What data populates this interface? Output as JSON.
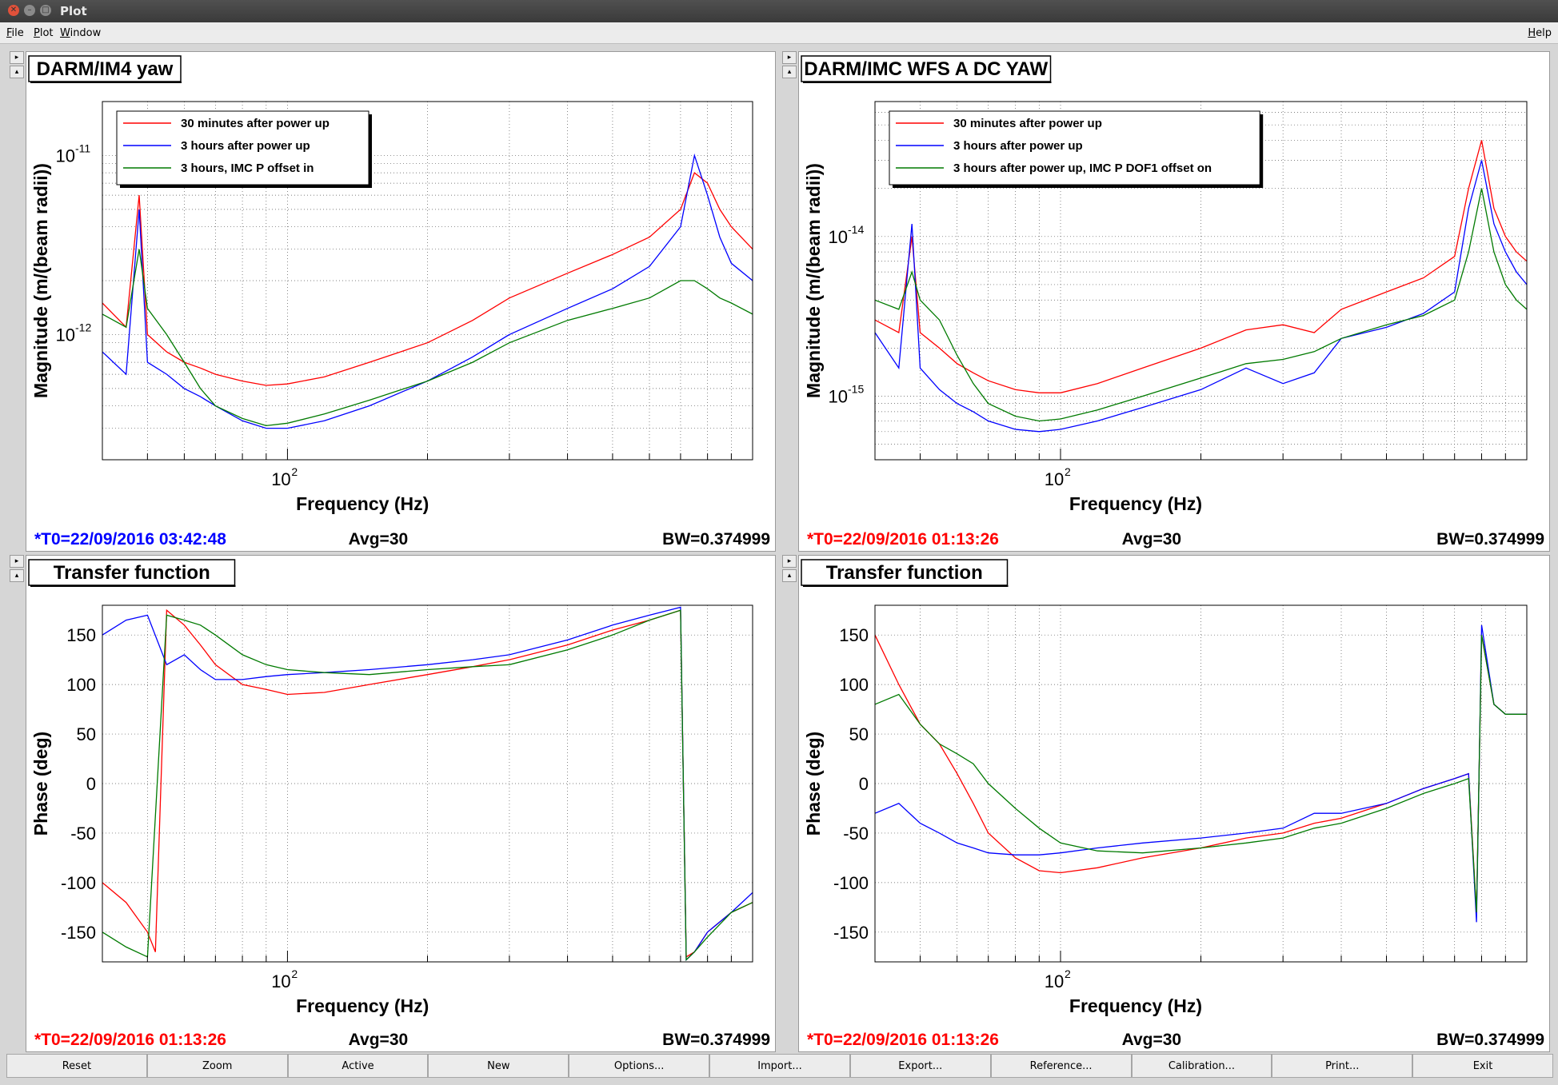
{
  "window": {
    "title": "Plot"
  },
  "menu": {
    "file": "File",
    "plot": "Plot",
    "window": "Window",
    "help": "Help"
  },
  "toolbar": [
    "Reset",
    "Zoom",
    "Active",
    "New",
    "Options...",
    "Import...",
    "Export...",
    "Reference...",
    "Calibration...",
    "Print...",
    "Exit"
  ],
  "colors": {
    "red": "#ff0000",
    "blue": "#0000ff",
    "green": "#007a00",
    "bg": "#d6d6d6"
  },
  "chart_data": [
    {
      "type": "line",
      "title": "DARM/IM4 yaw",
      "xlabel": "Frequency (Hz)",
      "ylabel": "Magnitude (m/(beam radii))",
      "xscale": "log",
      "yscale": "log",
      "xlim": [
        40,
        1000
      ],
      "ylim": [
        2e-13,
        2e-11
      ],
      "xtick_labels": [
        {
          "value": 100,
          "label": "10",
          "exp": "2"
        }
      ],
      "ytick_labels": [
        {
          "value": 1e-11,
          "label": "10",
          "exp": "-11"
        },
        {
          "value": 1e-12,
          "label": "10",
          "exp": "-12"
        }
      ],
      "legend": [
        "30 minutes after power up",
        "3 hours after power up",
        "3 hours, IMC P offset in"
      ],
      "legend_position": "top-left",
      "footer": {
        "t0": "*T0=22/09/2016 03:42:48",
        "t0_color": "#0000ff",
        "avg": "Avg=30",
        "bw": "BW=0.374999"
      },
      "series": [
        {
          "name": "30 minutes after power up",
          "color": "#ff0000",
          "x": [
            40,
            45,
            48,
            50,
            55,
            60,
            65,
            70,
            80,
            90,
            100,
            120,
            150,
            200,
            250,
            300,
            400,
            500,
            600,
            700,
            750,
            800,
            850,
            900,
            1000
          ],
          "y": [
            1.5e-12,
            1.1e-12,
            6e-12,
            1e-12,
            8e-13,
            7e-13,
            6.5e-13,
            6e-13,
            5.5e-13,
            5.2e-13,
            5.3e-13,
            5.8e-13,
            7e-13,
            9e-13,
            1.2e-12,
            1.6e-12,
            2.2e-12,
            2.8e-12,
            3.5e-12,
            5e-12,
            8e-12,
            7e-12,
            5e-12,
            4e-12,
            3e-12
          ]
        },
        {
          "name": "3 hours after power up",
          "color": "#0000ff",
          "x": [
            40,
            45,
            48,
            50,
            55,
            60,
            65,
            70,
            80,
            90,
            100,
            120,
            150,
            200,
            250,
            300,
            400,
            500,
            600,
            700,
            750,
            800,
            850,
            900,
            1000
          ],
          "y": [
            8e-13,
            6e-13,
            5e-12,
            7e-13,
            6e-13,
            5e-13,
            4.5e-13,
            4e-13,
            3.3e-13,
            3e-13,
            3e-13,
            3.3e-13,
            4e-13,
            5.5e-13,
            7.5e-13,
            1e-12,
            1.4e-12,
            1.8e-12,
            2.4e-12,
            4e-12,
            1e-11,
            6e-12,
            3.5e-12,
            2.5e-12,
            2e-12
          ]
        },
        {
          "name": "3 hours, IMC P offset in",
          "color": "#007a00",
          "x": [
            40,
            45,
            48,
            50,
            55,
            60,
            65,
            70,
            80,
            90,
            100,
            120,
            150,
            200,
            250,
            300,
            400,
            500,
            600,
            700,
            750,
            800,
            850,
            900,
            1000
          ],
          "y": [
            1.3e-12,
            1.1e-12,
            3e-12,
            1.4e-12,
            1e-12,
            7e-13,
            5e-13,
            4e-13,
            3.4e-13,
            3.1e-13,
            3.2e-13,
            3.6e-13,
            4.3e-13,
            5.5e-13,
            7e-13,
            9e-13,
            1.2e-12,
            1.4e-12,
            1.6e-12,
            2e-12,
            2e-12,
            1.8e-12,
            1.6e-12,
            1.5e-12,
            1.3e-12
          ]
        }
      ]
    },
    {
      "type": "line",
      "title": "DARM/IMC WFS A DC YAW",
      "xlabel": "Frequency (Hz)",
      "ylabel": "Magnitude (m/(beam radii))",
      "xscale": "log",
      "yscale": "log",
      "xlim": [
        40,
        1000
      ],
      "ylim": [
        4e-16,
        7e-14
      ],
      "xtick_labels": [
        {
          "value": 100,
          "label": "10",
          "exp": "2"
        }
      ],
      "ytick_labels": [
        {
          "value": 1e-14,
          "label": "10",
          "exp": "-14"
        },
        {
          "value": 1e-15,
          "label": "10",
          "exp": "-15"
        }
      ],
      "legend": [
        "30 minutes after power up",
        "3 hours after power up",
        "3 hours after power up, IMC P DOF1 offset on"
      ],
      "legend_position": "top-left",
      "footer": {
        "t0": "*T0=22/09/2016 01:13:26",
        "t0_color": "#ff0000",
        "avg": "Avg=30",
        "bw": "BW=0.374999"
      },
      "series": [
        {
          "name": "30 minutes after power up",
          "color": "#ff0000",
          "x": [
            40,
            45,
            48,
            50,
            55,
            60,
            65,
            70,
            80,
            90,
            100,
            120,
            150,
            200,
            250,
            300,
            350,
            400,
            500,
            600,
            700,
            750,
            800,
            850,
            900,
            950,
            1000
          ],
          "y": [
            3e-15,
            2.5e-15,
            1e-14,
            2.5e-15,
            2e-15,
            1.6e-15,
            1.4e-15,
            1.25e-15,
            1.1e-15,
            1.05e-15,
            1.05e-15,
            1.2e-15,
            1.5e-15,
            2e-15,
            2.6e-15,
            2.8e-15,
            2.5e-15,
            3.5e-15,
            4.5e-15,
            5.5e-15,
            7.5e-15,
            2e-14,
            4e-14,
            1.5e-14,
            1e-14,
            8e-15,
            7e-15
          ]
        },
        {
          "name": "3 hours after power up",
          "color": "#0000ff",
          "x": [
            40,
            45,
            48,
            50,
            55,
            60,
            65,
            70,
            80,
            90,
            100,
            120,
            150,
            200,
            250,
            300,
            350,
            400,
            500,
            600,
            700,
            750,
            800,
            850,
            900,
            950,
            1000
          ],
          "y": [
            2.5e-15,
            1.5e-15,
            1.2e-14,
            1.5e-15,
            1.1e-15,
            9e-16,
            8e-16,
            7e-16,
            6.2e-16,
            6e-16,
            6.2e-16,
            7e-16,
            8.5e-16,
            1.1e-15,
            1.5e-15,
            1.2e-15,
            1.4e-15,
            2.3e-15,
            2.7e-15,
            3.3e-15,
            4.5e-15,
            1.5e-14,
            3e-14,
            1.2e-14,
            8e-15,
            6e-15,
            5e-15
          ]
        },
        {
          "name": "3 hours after power up, IMC P DOF1 offset on",
          "color": "#007a00",
          "x": [
            40,
            45,
            48,
            50,
            55,
            60,
            65,
            70,
            80,
            90,
            100,
            120,
            150,
            200,
            250,
            300,
            350,
            400,
            500,
            600,
            700,
            750,
            800,
            850,
            900,
            950,
            1000
          ],
          "y": [
            4e-15,
            3.5e-15,
            6e-15,
            4e-15,
            3e-15,
            1.8e-15,
            1.2e-15,
            9e-16,
            7.5e-16,
            7e-16,
            7.2e-16,
            8.2e-16,
            1e-15,
            1.3e-15,
            1.6e-15,
            1.7e-15,
            1.9e-15,
            2.3e-15,
            2.8e-15,
            3.2e-15,
            4e-15,
            8e-15,
            2e-14,
            8e-15,
            5e-15,
            4e-15,
            3.5e-15
          ]
        }
      ]
    },
    {
      "type": "line",
      "title": "Transfer function",
      "xlabel": "Frequency (Hz)",
      "ylabel": "Phase (deg)",
      "xscale": "log",
      "yscale": "linear",
      "xlim": [
        40,
        1000
      ],
      "ylim": [
        -180,
        180
      ],
      "xtick_labels": [
        {
          "value": 100,
          "label": "10",
          "exp": "2"
        }
      ],
      "yticks": [
        150,
        100,
        50,
        0,
        -50,
        -100,
        -150
      ],
      "footer": {
        "t0": "*T0=22/09/2016 01:13:26",
        "t0_color": "#ff0000",
        "avg": "Avg=30",
        "bw": "BW=0.374999"
      },
      "series": [
        {
          "name": "30 minutes after power up",
          "color": "#ff0000",
          "x": [
            40,
            45,
            50,
            52,
            55,
            60,
            65,
            70,
            80,
            90,
            100,
            120,
            150,
            200,
            250,
            300,
            400,
            500,
            600,
            700,
            720,
            750,
            800,
            900,
            1000
          ],
          "y": [
            -100,
            -120,
            -150,
            -170,
            175,
            160,
            140,
            120,
            100,
            95,
            90,
            92,
            100,
            110,
            118,
            125,
            140,
            155,
            165,
            175,
            -175,
            -170,
            -150,
            -130,
            -120
          ]
        },
        {
          "name": "3 hours after power up",
          "color": "#0000ff",
          "x": [
            40,
            45,
            50,
            55,
            60,
            65,
            70,
            80,
            90,
            100,
            120,
            150,
            200,
            250,
            300,
            400,
            500,
            600,
            700,
            720,
            750,
            800,
            900,
            1000
          ],
          "y": [
            150,
            165,
            170,
            120,
            130,
            115,
            105,
            105,
            108,
            110,
            112,
            115,
            120,
            125,
            130,
            145,
            160,
            170,
            178,
            -178,
            -170,
            -150,
            -130,
            -110
          ]
        },
        {
          "name": "3 hours, IMC P offset in",
          "color": "#007a00",
          "x": [
            40,
            45,
            50,
            55,
            60,
            65,
            70,
            80,
            90,
            100,
            120,
            150,
            200,
            250,
            300,
            400,
            500,
            600,
            700,
            720,
            750,
            800,
            900,
            1000
          ],
          "y": [
            -150,
            -165,
            -175,
            170,
            165,
            160,
            150,
            130,
            120,
            115,
            112,
            110,
            115,
            118,
            120,
            135,
            150,
            165,
            175,
            -178,
            -170,
            -155,
            -130,
            -120
          ]
        }
      ]
    },
    {
      "type": "line",
      "title": "Transfer function",
      "xlabel": "Frequency (Hz)",
      "ylabel": "Phase (deg)",
      "xscale": "log",
      "yscale": "linear",
      "xlim": [
        40,
        1000
      ],
      "ylim": [
        -180,
        180
      ],
      "xtick_labels": [
        {
          "value": 100,
          "label": "10",
          "exp": "2"
        }
      ],
      "yticks": [
        150,
        100,
        50,
        0,
        -50,
        -100,
        -150
      ],
      "footer": {
        "t0": "*T0=22/09/2016 01:13:26",
        "t0_color": "#ff0000",
        "avg": "Avg=30",
        "bw": "BW=0.374999"
      },
      "series": [
        {
          "name": "30 minutes after power up",
          "color": "#ff0000",
          "x": [
            40,
            45,
            50,
            55,
            60,
            65,
            70,
            80,
            90,
            100,
            120,
            150,
            200,
            250,
            300,
            350,
            400,
            500,
            600,
            700,
            750,
            780,
            800,
            850,
            900,
            1000
          ],
          "y": [
            150,
            100,
            60,
            40,
            10,
            -20,
            -50,
            -75,
            -88,
            -90,
            -85,
            -75,
            -65,
            -55,
            -50,
            -40,
            -35,
            -20,
            -5,
            5,
            10,
            -130,
            150,
            80,
            70,
            70
          ]
        },
        {
          "name": "3 hours after power up",
          "color": "#0000ff",
          "x": [
            40,
            45,
            50,
            55,
            60,
            65,
            70,
            80,
            90,
            100,
            120,
            150,
            200,
            250,
            300,
            350,
            400,
            500,
            600,
            700,
            750,
            780,
            800,
            850,
            900,
            1000
          ],
          "y": [
            -30,
            -20,
            -40,
            -50,
            -60,
            -65,
            -70,
            -72,
            -72,
            -70,
            -65,
            -60,
            -55,
            -50,
            -45,
            -30,
            -30,
            -20,
            -5,
            5,
            10,
            -140,
            160,
            80,
            70,
            70
          ]
        },
        {
          "name": "3 hours after power up, IMC P DOF1 offset on",
          "color": "#007a00",
          "x": [
            40,
            45,
            50,
            55,
            60,
            65,
            70,
            80,
            90,
            100,
            120,
            150,
            200,
            250,
            300,
            350,
            400,
            500,
            600,
            700,
            750,
            780,
            800,
            850,
            900,
            1000
          ],
          "y": [
            80,
            90,
            60,
            40,
            30,
            20,
            0,
            -25,
            -45,
            -60,
            -68,
            -70,
            -65,
            -60,
            -55,
            -45,
            -40,
            -25,
            -10,
            0,
            5,
            -130,
            150,
            80,
            70,
            70
          ]
        }
      ]
    }
  ]
}
